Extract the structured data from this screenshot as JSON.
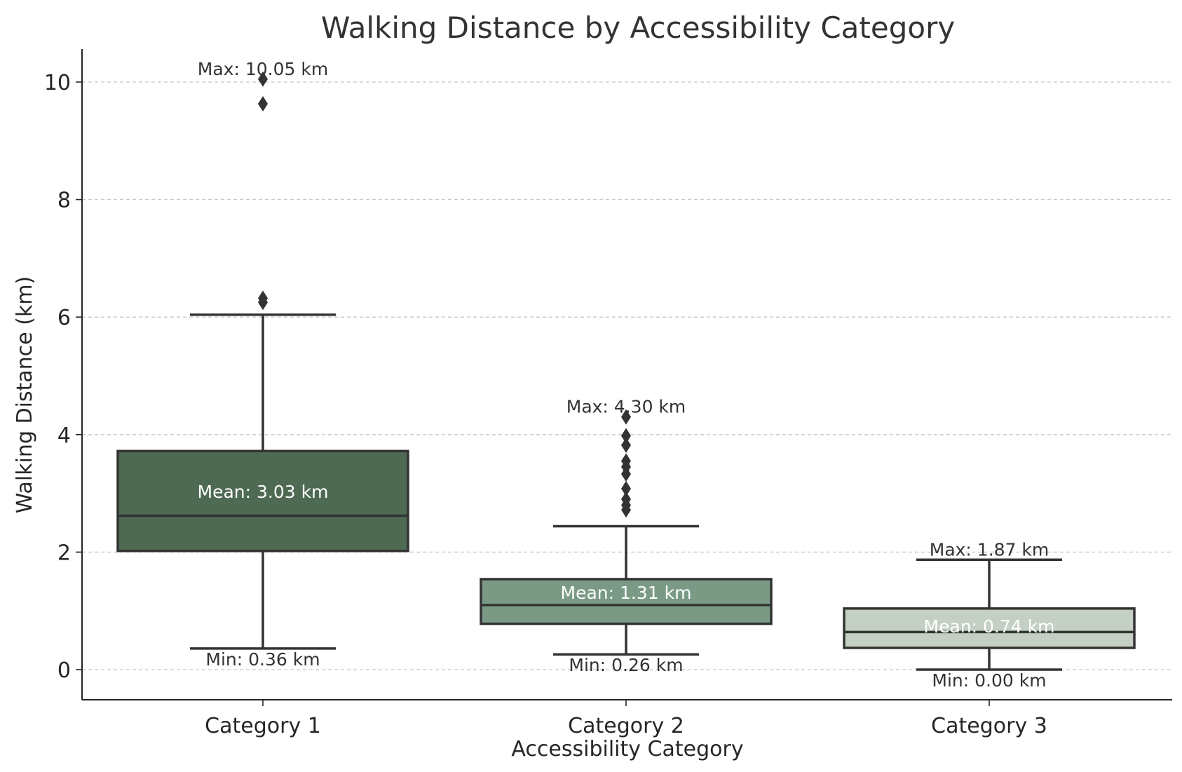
{
  "chart_data": {
    "type": "box",
    "title": "Walking Distance by Accessibility Category",
    "xlabel": "Accessibility Category",
    "ylabel": "Walking Distance (km)",
    "ylim": [
      -0.5,
      10.6
    ],
    "yticks": [
      0,
      2,
      4,
      6,
      8,
      10
    ],
    "grid": "horizontal dashed",
    "categories": [
      "Category 1",
      "Category 2",
      "Category 3"
    ],
    "boxes": [
      {
        "category": "Category 1",
        "color": "#4e6a53",
        "q1": 2.02,
        "median": 2.62,
        "q3": 3.72,
        "whisker_low": 0.36,
        "whisker_high": 6.04,
        "outliers": [
          6.25,
          6.32,
          9.63,
          10.05
        ],
        "mean_label": "Mean: 3.03 km",
        "mean_y": 3.03,
        "max_label": "Max: 10.05 km",
        "max_y": 10.05,
        "min_label": "Min: 0.36 km",
        "min_y": 0.36
      },
      {
        "category": "Category 2",
        "color": "#7a9a86",
        "q1": 0.78,
        "median": 1.1,
        "q3": 1.54,
        "whisker_low": 0.26,
        "whisker_high": 2.44,
        "outliers": [
          2.72,
          2.8,
          2.9,
          3.08,
          3.33,
          3.45,
          3.55,
          3.82,
          3.98,
          4.3
        ],
        "mean_label": "Mean: 1.31 km",
        "mean_y": 1.31,
        "max_label": "Max: 4.30 km",
        "max_y": 4.3,
        "min_label": "Min: 0.26 km",
        "min_y": 0.26
      },
      {
        "category": "Category 3",
        "color": "#c3d0c3",
        "q1": 0.37,
        "median": 0.64,
        "q3": 1.04,
        "whisker_low": 0.0,
        "whisker_high": 1.87,
        "outliers": [],
        "mean_label": "Mean: 0.74 km",
        "mean_y": 0.74,
        "max_label": "Max: 1.87 km",
        "max_y": 1.87,
        "min_label": "Min: 0.00 km",
        "min_y": 0.0
      }
    ]
  }
}
